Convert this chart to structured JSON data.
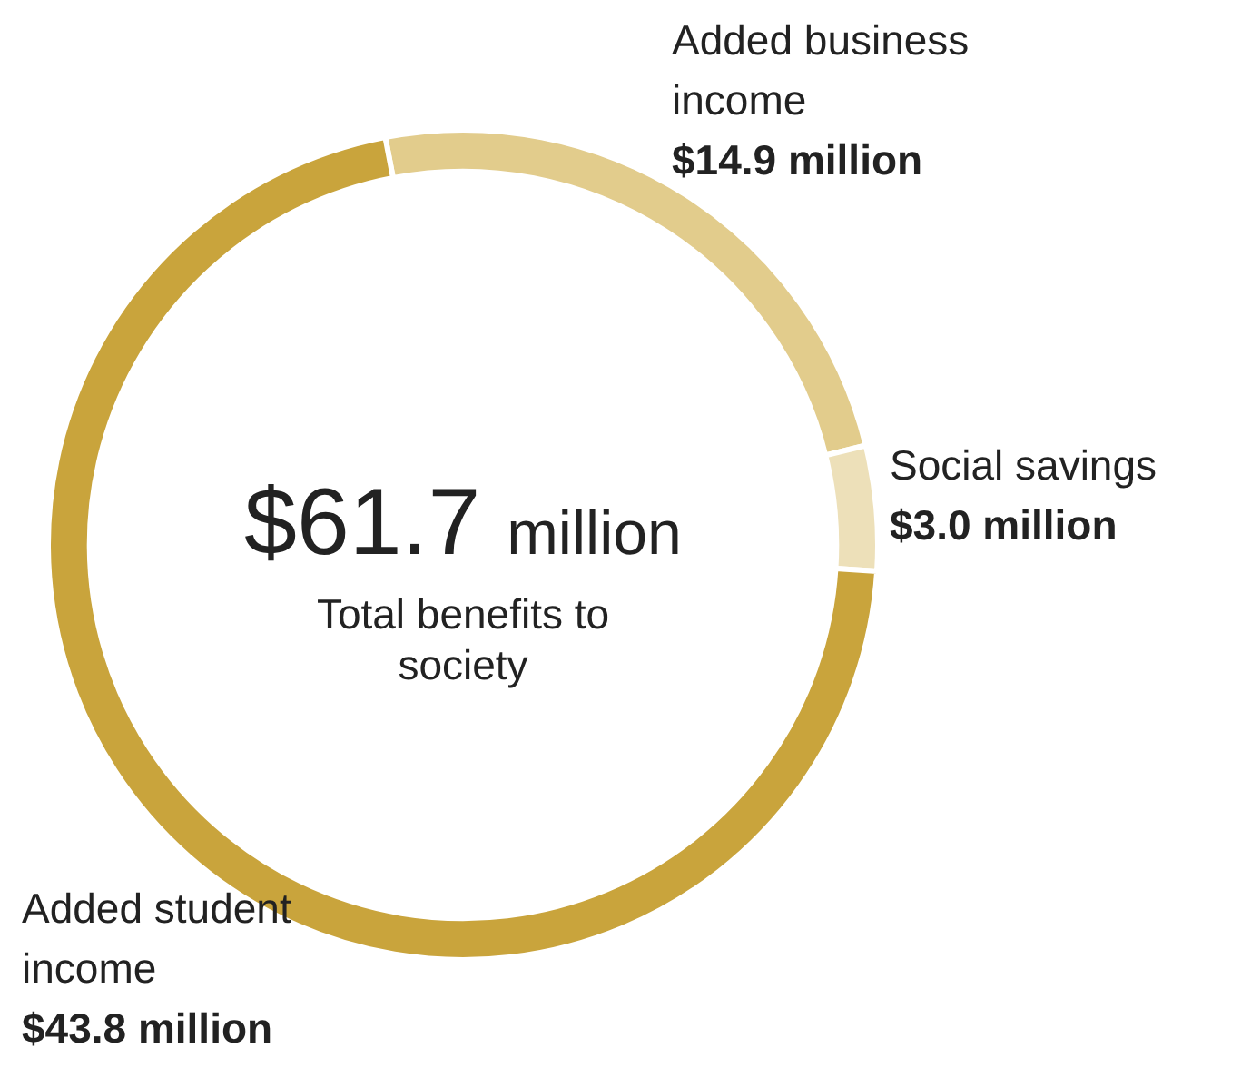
{
  "chart_data": {
    "type": "donut",
    "categories": [
      "Added business income",
      "Social savings",
      "Added student income"
    ],
    "values": [
      14.9,
      3.0,
      43.8
    ],
    "colors": [
      "#e2cc8c",
      "#ede0b9",
      "#c9a43c"
    ],
    "value_labels": [
      "$14.9 million",
      "$3.0 million",
      "$43.8 million"
    ],
    "annotations": [
      "$61.7 million",
      "Total benefits to society"
    ],
    "legend": false
  }
}
